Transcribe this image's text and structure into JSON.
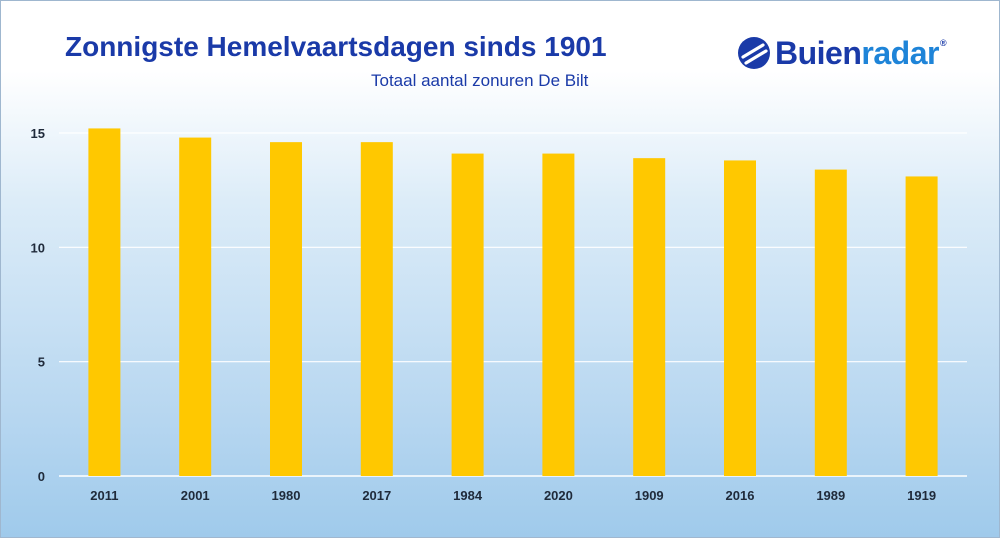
{
  "header": {
    "title": "Zonnigste Hemelvaartsdagen sinds 1901",
    "subtitle": "Totaal aantal zonuren De Bilt"
  },
  "logo": {
    "text_part1": "Buien",
    "text_part2": "radar",
    "registered": "®",
    "icon": "buienradar-logo-icon",
    "color_primary": "#1a3aa8",
    "color_secondary": "#1e84d8"
  },
  "chart_data": {
    "type": "bar",
    "title": "Zonnigste Hemelvaartsdagen sinds 1901",
    "subtitle": "Totaal aantal zonuren De Bilt",
    "categories": [
      "2011",
      "2001",
      "1980",
      "2017",
      "1984",
      "2020",
      "1909",
      "2016",
      "1989",
      "1919"
    ],
    "values": [
      15.2,
      14.8,
      14.6,
      14.6,
      14.1,
      14.1,
      13.9,
      13.8,
      13.4,
      13.1
    ],
    "ylim": [
      0,
      15
    ],
    "yticks": [
      0,
      5,
      10,
      15
    ],
    "grid": true,
    "legend": "none",
    "bar_color": "#ffc800",
    "grid_color": "#ffffff"
  }
}
